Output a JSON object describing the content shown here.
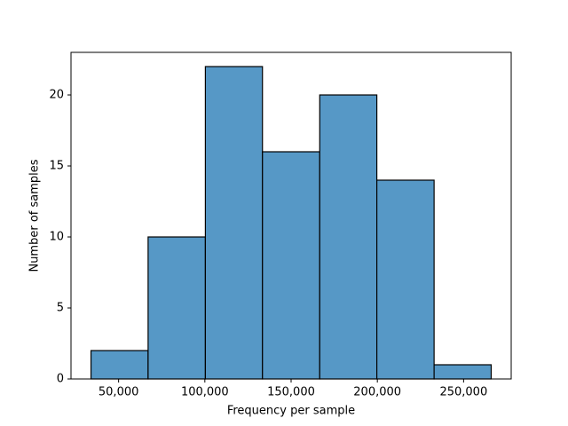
{
  "chart_data": {
    "type": "histogram",
    "xlabel": "Frequency per sample",
    "ylabel": "Number of samples",
    "bins": [
      34000,
      67100,
      100300,
      133400,
      166600,
      199700,
      232900,
      266000
    ],
    "values": [
      2,
      10,
      22,
      16,
      20,
      14,
      1
    ],
    "color": "#5698c6",
    "edgecolor": "#000000",
    "xlim": [
      22400,
      277600
    ],
    "ylim": [
      0,
      23
    ],
    "xticks": [
      {
        "value": 50000,
        "label": "50,000"
      },
      {
        "value": 100000,
        "label": "100,000"
      },
      {
        "value": 150000,
        "label": "150,000"
      },
      {
        "value": 200000,
        "label": "200,000"
      },
      {
        "value": 250000,
        "label": "250,000"
      }
    ],
    "yticks": [
      0,
      5,
      10,
      15,
      20
    ]
  }
}
